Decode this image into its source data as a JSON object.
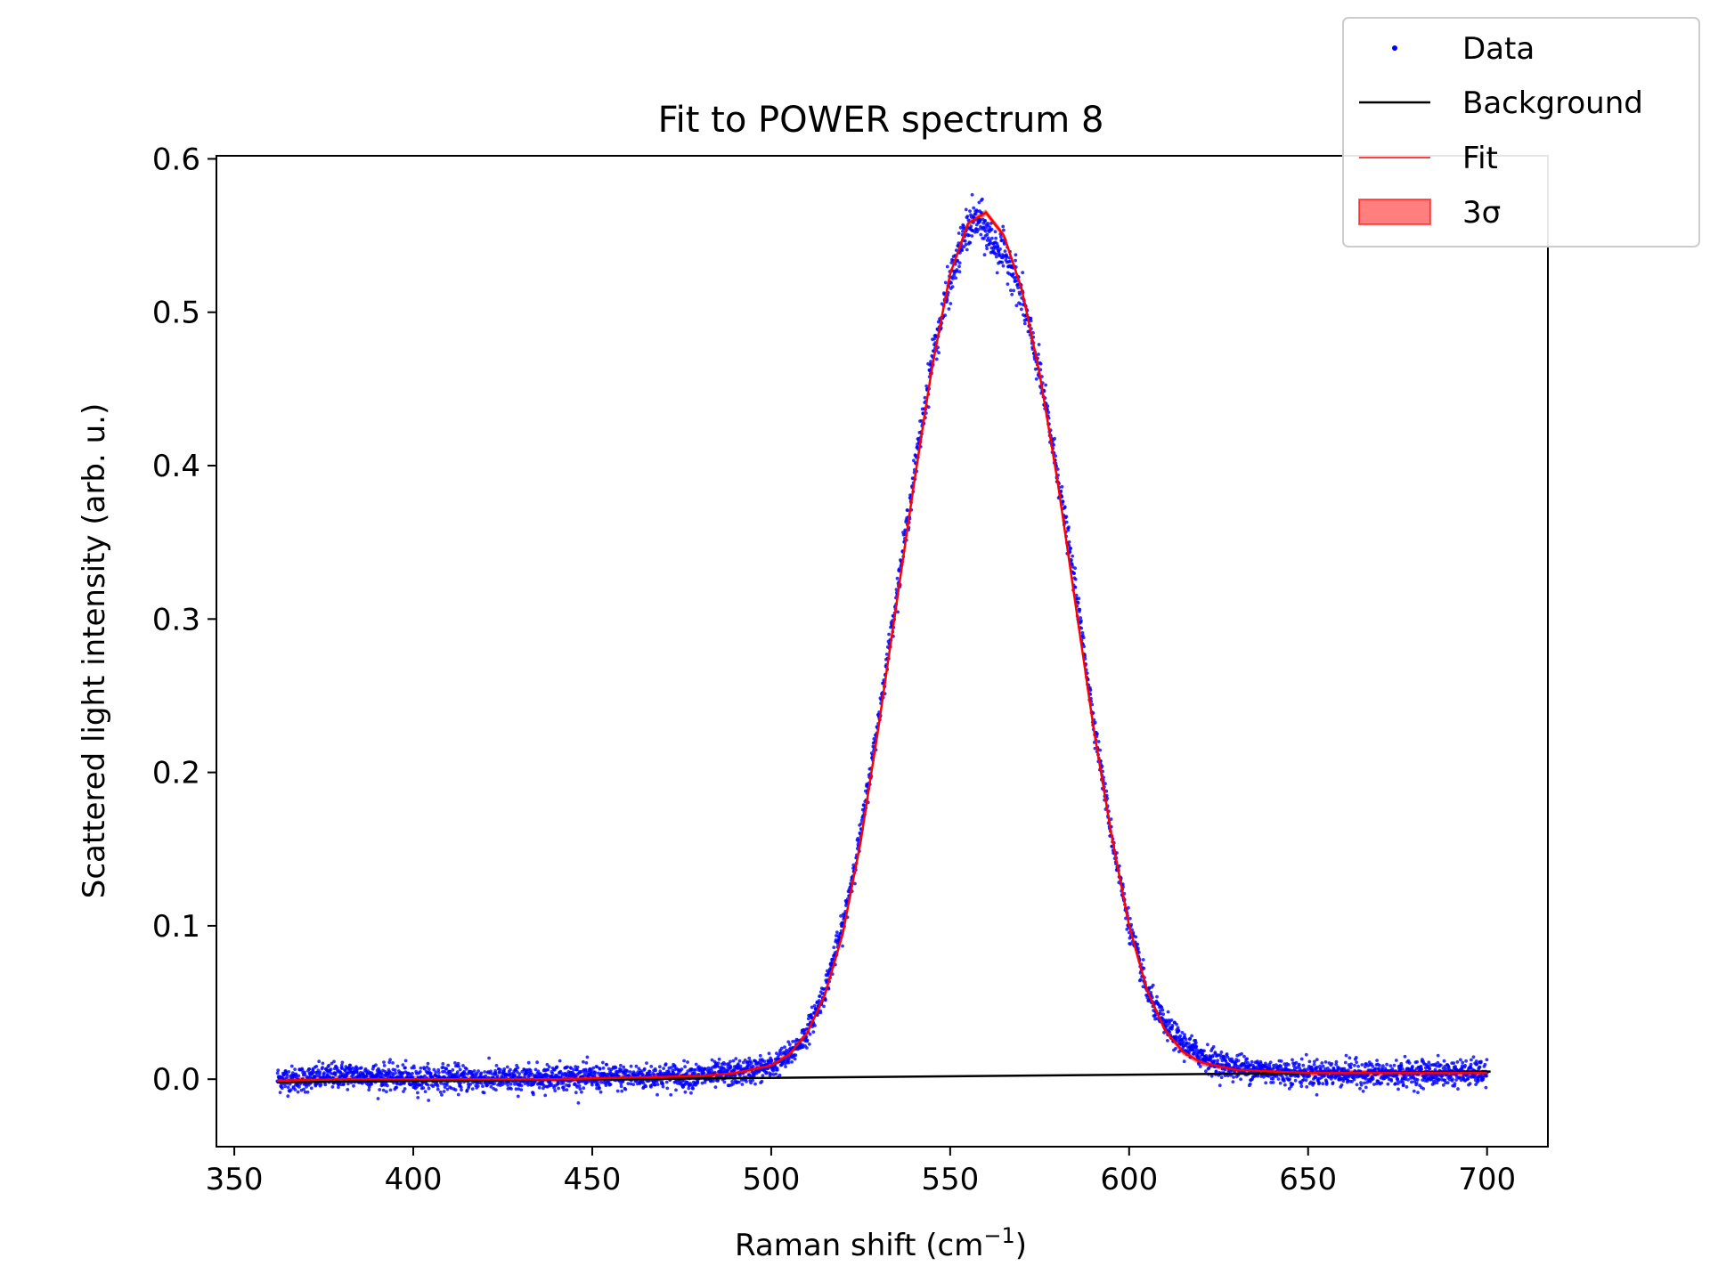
{
  "chart_data": {
    "type": "scatter",
    "title": "Fit to POWER spectrum 8",
    "xlabel": "Raman shift (cm",
    "xlabel_sup": "−1",
    "xlabel_end": ")",
    "ylabel": "Scattered light intensity (arb. u.)",
    "xlim": [
      345,
      717
    ],
    "ylim": [
      -0.044,
      0.602
    ],
    "xticks": [
      350,
      400,
      450,
      500,
      550,
      600,
      650,
      700
    ],
    "xtick_labels": [
      "350",
      "400",
      "450",
      "500",
      "550",
      "600",
      "650",
      "700"
    ],
    "yticks": [
      0.0,
      0.1,
      0.2,
      0.3,
      0.4,
      0.5,
      0.6
    ],
    "ytick_labels": [
      "0.0",
      "0.1",
      "0.2",
      "0.3",
      "0.4",
      "0.5",
      "0.6"
    ],
    "grid": false,
    "legend_position": "top-right",
    "legend": [
      {
        "label": "Data",
        "kind": "marker",
        "color": "#0000ff"
      },
      {
        "label": "Background",
        "kind": "line",
        "color": "#000000"
      },
      {
        "label": "Fit",
        "kind": "line",
        "color": "#ff0000"
      },
      {
        "label": "3σ",
        "kind": "patch",
        "color": "#ff0000"
      }
    ],
    "series": [
      {
        "name": "Data",
        "color": "#0000ff",
        "x": [
          362,
          370,
          380,
          390,
          400,
          410,
          420,
          430,
          440,
          450,
          460,
          470,
          480,
          490,
          495,
          500,
          505,
          510,
          515,
          520,
          525,
          530,
          535,
          540,
          545,
          550,
          552,
          554,
          556,
          558,
          560,
          562,
          564,
          566,
          568,
          570,
          575,
          580,
          585,
          590,
          595,
          600,
          605,
          610,
          615,
          620,
          625,
          630,
          640,
          650,
          660,
          670,
          680,
          690,
          700
        ],
        "y": [
          0.0,
          0.0,
          0.003,
          0.002,
          0.0,
          0.001,
          0.0,
          0.0,
          0.002,
          0.001,
          0.001,
          0.002,
          0.002,
          0.004,
          0.006,
          0.008,
          0.015,
          0.03,
          0.058,
          0.1,
          0.16,
          0.235,
          0.315,
          0.395,
          0.47,
          0.52,
          0.535,
          0.55,
          0.558,
          0.56,
          0.552,
          0.545,
          0.54,
          0.535,
          0.525,
          0.51,
          0.46,
          0.395,
          0.32,
          0.235,
          0.16,
          0.1,
          0.057,
          0.035,
          0.023,
          0.016,
          0.01,
          0.008,
          0.005,
          0.004,
          0.004,
          0.003,
          0.004,
          0.004,
          0.004
        ]
      },
      {
        "name": "Background",
        "color": "#000000",
        "x": [
          362,
          701
        ],
        "y": [
          -0.002,
          0.005
        ]
      },
      {
        "name": "Fit",
        "color": "#ff0000",
        "x": [
          362,
          380,
          400,
          420,
          440,
          460,
          480,
          490,
          500,
          505,
          510,
          515,
          520,
          525,
          530,
          535,
          540,
          545,
          550,
          555,
          560,
          565,
          570,
          575,
          580,
          585,
          590,
          595,
          600,
          605,
          610,
          615,
          620,
          630,
          650,
          670,
          700
        ],
        "y": [
          -0.001,
          0.0,
          0.0,
          0.0,
          0.0,
          0.001,
          0.002,
          0.004,
          0.009,
          0.016,
          0.03,
          0.055,
          0.095,
          0.155,
          0.23,
          0.31,
          0.39,
          0.465,
          0.525,
          0.558,
          0.565,
          0.55,
          0.515,
          0.46,
          0.39,
          0.31,
          0.23,
          0.16,
          0.1,
          0.058,
          0.032,
          0.018,
          0.011,
          0.006,
          0.004,
          0.004,
          0.004
        ]
      }
    ]
  }
}
